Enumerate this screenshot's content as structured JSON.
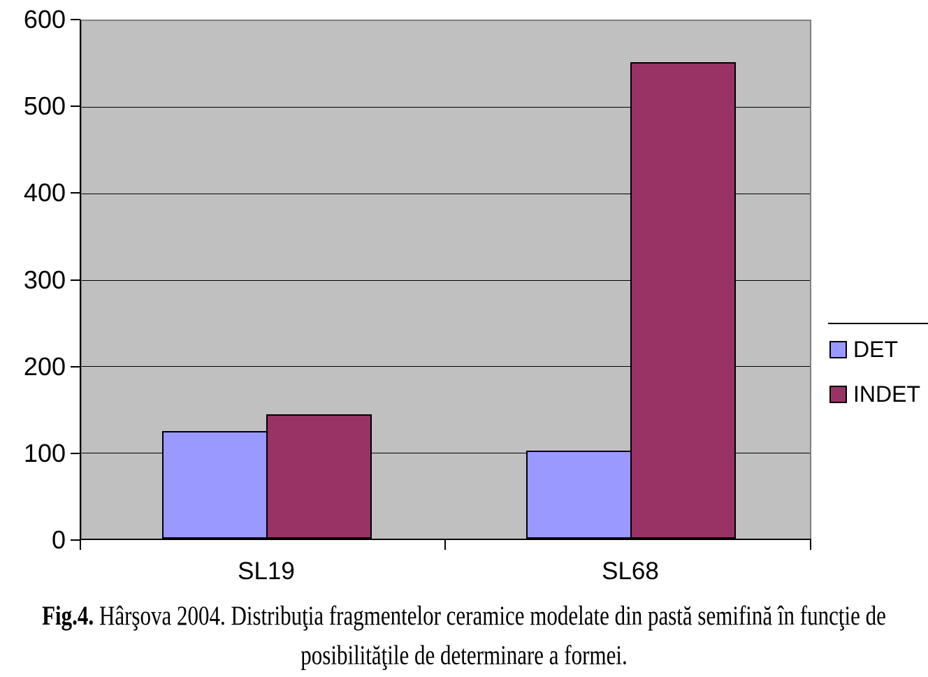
{
  "figure": {
    "caption_prefix": "Fig.4.",
    "caption_line1": " Hârşova 2004. Distribuţia fragmentelor ceramice modelate din pastă semifină în funcţie de",
    "caption_line2": "posibilităţile de determinare a formei."
  },
  "chart_data": {
    "type": "bar",
    "title": "",
    "xlabel": "",
    "ylabel": "",
    "categories": [
      "SL19",
      "SL68"
    ],
    "series": [
      {
        "name": "DET",
        "color": "#9999FF",
        "values": [
          125,
          102
        ]
      },
      {
        "name": "INDET",
        "color": "#993366",
        "values": [
          144,
          552
        ]
      }
    ],
    "ylim": [
      0,
      600
    ],
    "yticks": [
      0,
      100,
      200,
      300,
      400,
      500,
      600
    ],
    "grid": true,
    "legend_position": "right",
    "plot_background": "#C0C0C0",
    "bar_border_color": "#000000",
    "axis_color": "#000000",
    "plot_border_color": "#808080"
  }
}
